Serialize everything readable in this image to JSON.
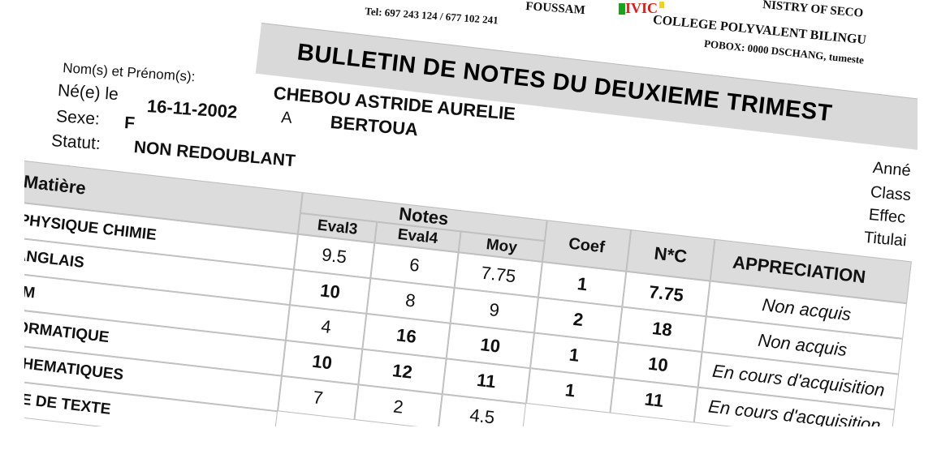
{
  "header": {
    "phone": "Tel: 697 243 124 / 677 102 241",
    "town": "FOUSSAM",
    "ministry": "NISTRY OF SECO",
    "school": "COLLEGE POLYVALENT BILINGU",
    "pobox": "POBOX: 0000 DSCHANG, tumeste",
    "logo_colors": [
      "#1aa31a",
      "#e01b1b",
      "#f2d21b"
    ]
  },
  "title": "BULLETIN DE NOTES DU DEUXIEME TRIMEST",
  "student": {
    "name_label": "Nom(s) et Prénom(s):",
    "name": "CHEBOU ASTRIDE AURELIE",
    "born_label": "Né(e) le",
    "born_date": "16-11-2002",
    "at_label": "A",
    "born_place": "BERTOUA",
    "sex_label": "Sexe:",
    "sex": "F",
    "status_label": "Statut:",
    "status": "NON REDOUBLANT"
  },
  "right_labels": [
    "Anné",
    "Class",
    "Effec",
    "Titulai"
  ],
  "table": {
    "headers": {
      "subject": "Matière",
      "notes": "Notes",
      "eval3": "Eval3",
      "eval4": "Eval4",
      "moy": "Moy",
      "coef": "Coef",
      "nc": "N*C",
      "appreciation": "APPRECIATION"
    },
    "rows": [
      {
        "subject": "PHYSIQUE CHIMIE",
        "eval3": "9.5",
        "eval4": "6",
        "moy": "7.75",
        "coef": "1",
        "nc": "7.75",
        "appreciation": "Non acquis"
      },
      {
        "subject": "ANGLAIS",
        "eval3": "10",
        "eval4": "8",
        "moy": "9",
        "coef": "2",
        "nc": "18",
        "appreciation": "Non acquis"
      },
      {
        "subject": "CM",
        "eval3": "4",
        "eval4": "16",
        "moy": "10",
        "coef": "1",
        "nc": "10",
        "appreciation": "En cours d'acquisition"
      },
      {
        "subject": "FORMATIQUE",
        "eval3": "10",
        "eval4": "12",
        "moy": "11",
        "coef": "1",
        "nc": "11",
        "appreciation": "En cours d'acquisition"
      },
      {
        "subject": "ATHEMATIQUES",
        "eval3": "7",
        "eval4": "2",
        "moy": "4.5",
        "coef": "",
        "nc": "",
        "appreciation": ""
      },
      {
        "subject": "UDE DE TEXTE",
        "eval3": "",
        "eval4": "",
        "moy": "",
        "coef": "",
        "nc": "",
        "appreciation": ""
      }
    ]
  }
}
